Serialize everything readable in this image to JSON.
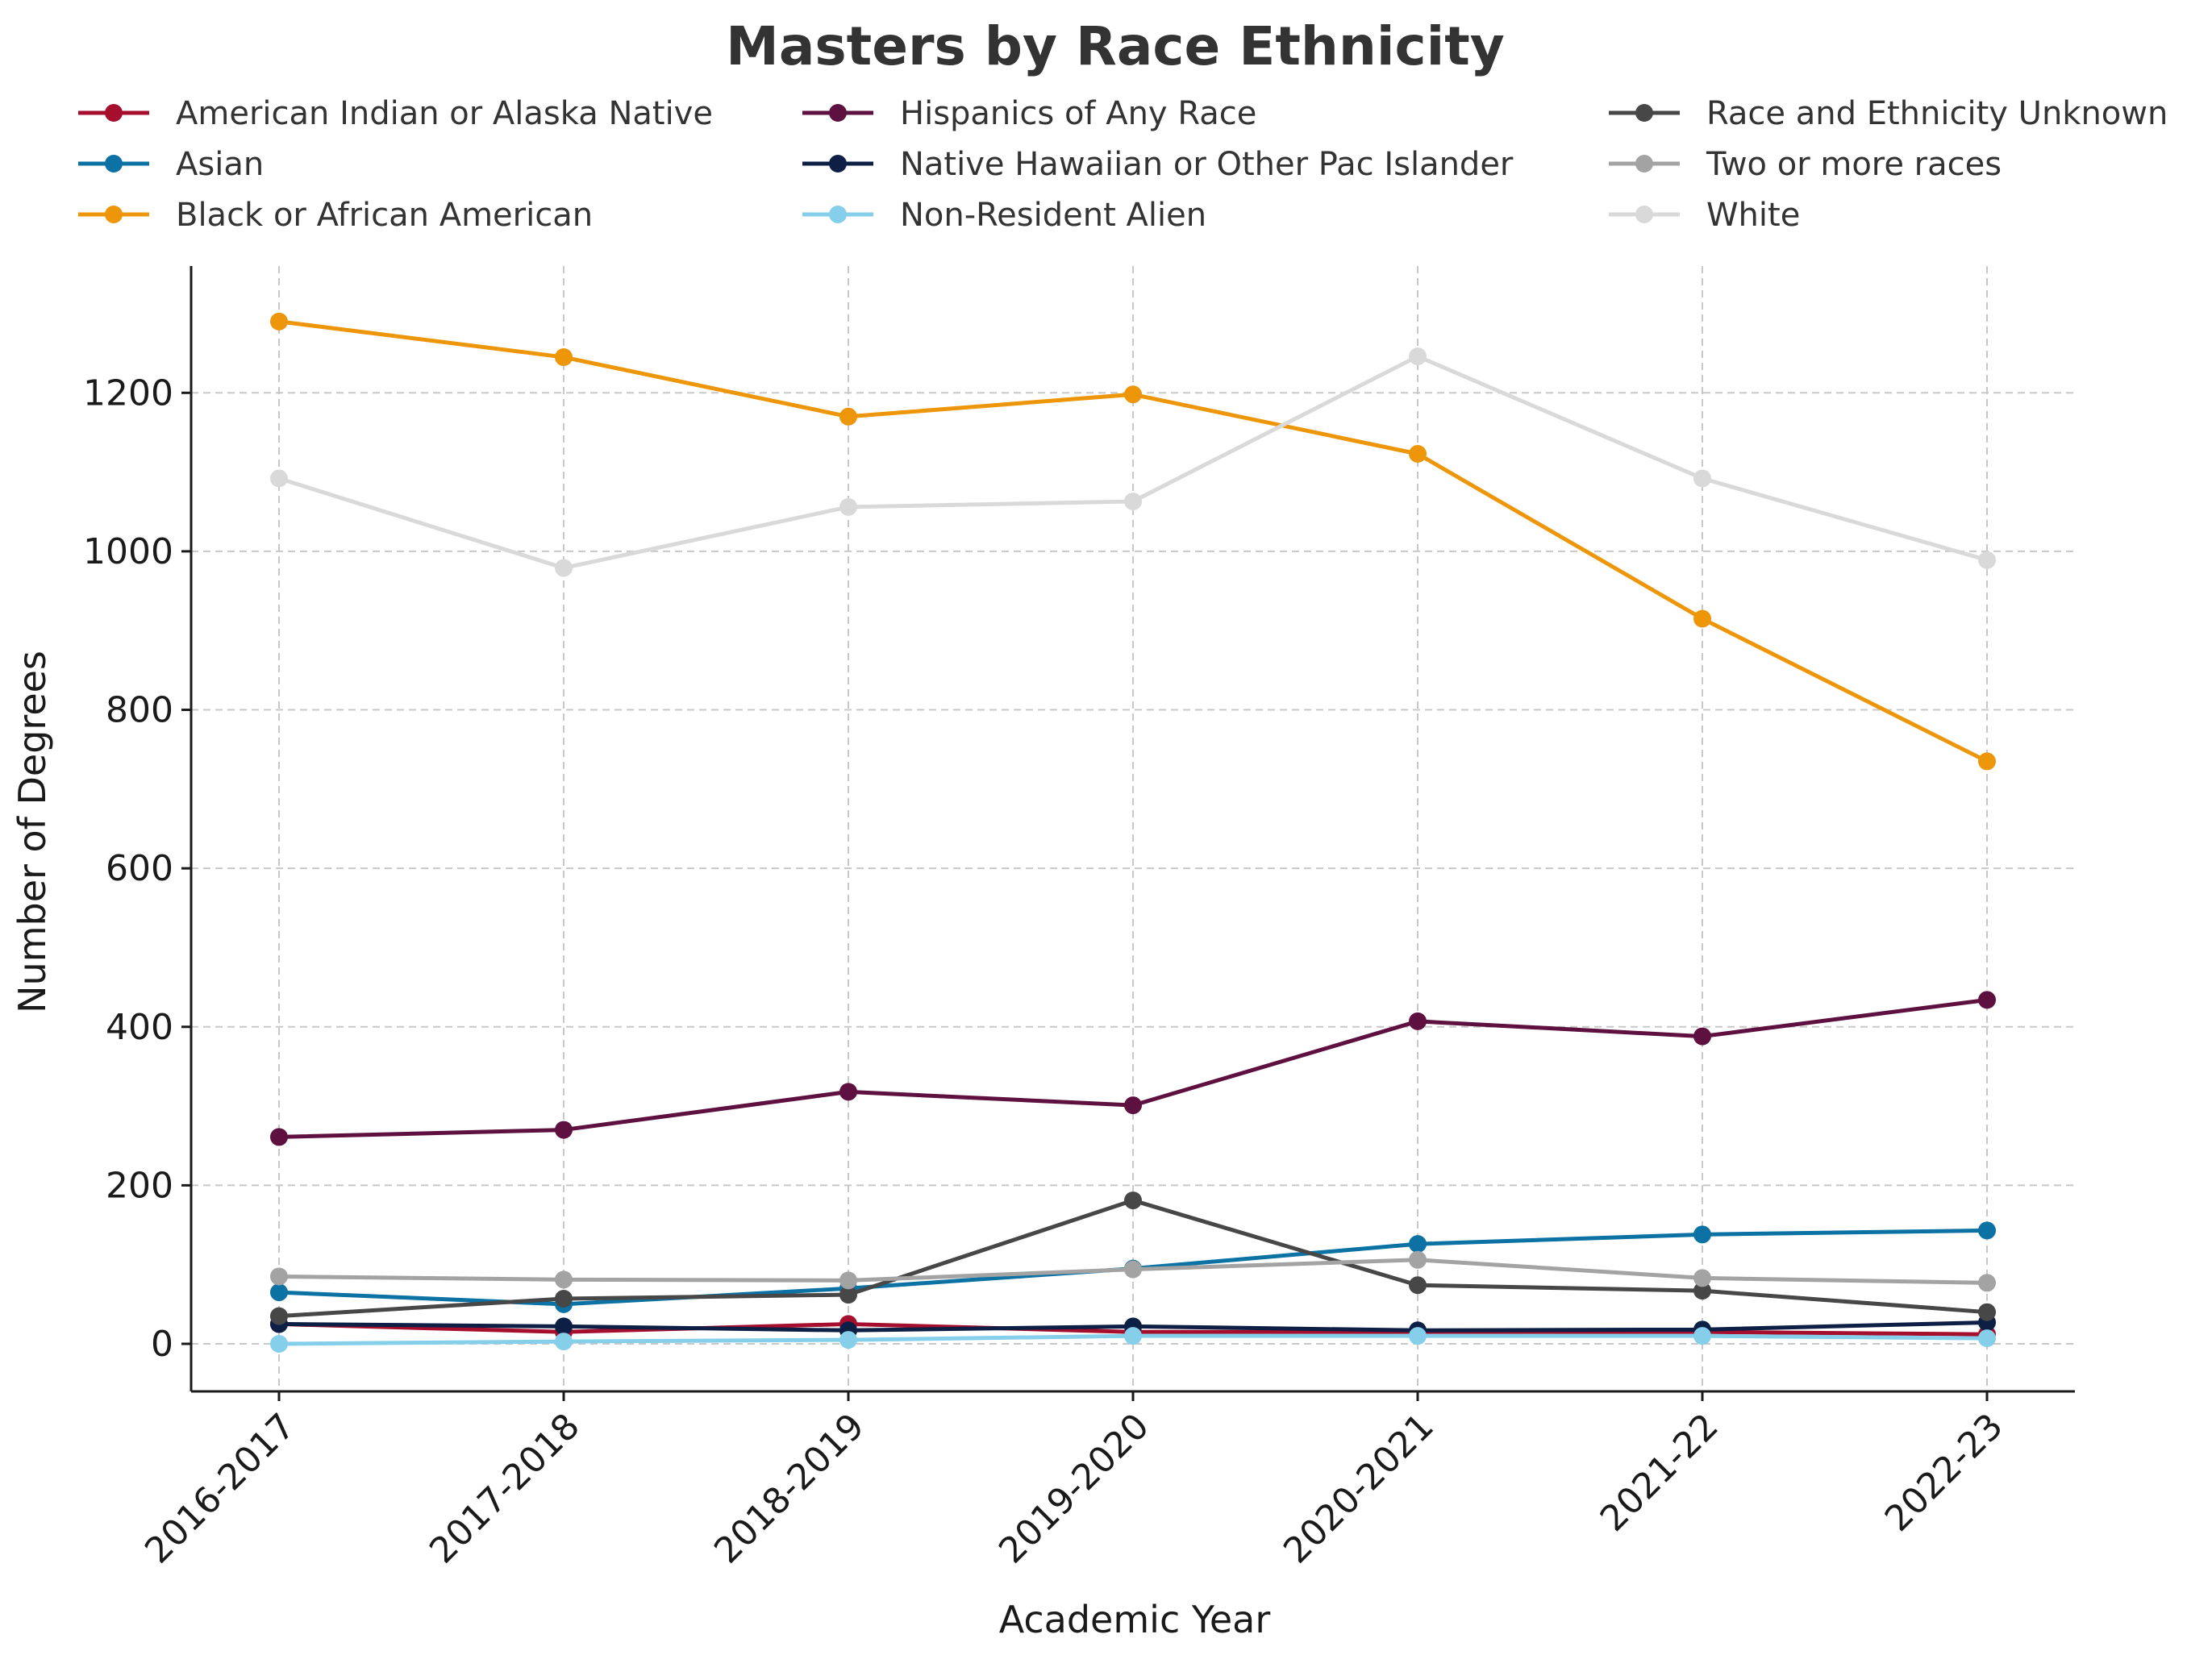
{
  "chart_data": {
    "type": "line",
    "title": "Masters by Race Ethnicity",
    "xlabel": "Academic Year",
    "ylabel": "Number of Degrees",
    "categories": [
      "2016-2017",
      "2017-2018",
      "2018-2019",
      "2019-2020",
      "2020-2021",
      "2021-22",
      "2022-23"
    ],
    "ylim": [
      -60,
      1360
    ],
    "yticks": [
      0,
      200,
      400,
      600,
      800,
      1000,
      1200
    ],
    "grid": true,
    "legend_position": "top",
    "series": [
      {
        "name": "American Indian or Alaska Native",
        "color": "#a50e2d",
        "values": [
          25,
          15,
          25,
          15,
          15,
          15,
          12
        ]
      },
      {
        "name": "Asian",
        "color": "#0b72a3",
        "values": [
          65,
          50,
          70,
          95,
          126,
          138,
          143
        ]
      },
      {
        "name": "Black or African American",
        "color": "#ee9609",
        "values": [
          1290,
          1245,
          1170,
          1198,
          1123,
          915,
          735
        ]
      },
      {
        "name": "Hispanics of Any Race",
        "color": "#5e1040",
        "values": [
          261,
          270,
          318,
          301,
          407,
          388,
          434
        ]
      },
      {
        "name": "Native Hawaiian or Other Pac Islander",
        "color": "#0e1f45",
        "values": [
          25,
          22,
          17,
          22,
          17,
          18,
          27
        ]
      },
      {
        "name": "Non-Resident Alien",
        "color": "#86cfea",
        "values": [
          0,
          3,
          5,
          10,
          10,
          10,
          7
        ]
      },
      {
        "name": "Race and Ethnicity Unknown",
        "color": "#474747",
        "values": [
          35,
          57,
          62,
          181,
          74,
          67,
          40
        ]
      },
      {
        "name": "Two or more races",
        "color": "#a3a3a3",
        "values": [
          85,
          81,
          80,
          94,
          106,
          83,
          77
        ]
      },
      {
        "name": "White",
        "color": "#d9d9d9",
        "values": [
          1092,
          979,
          1056,
          1063,
          1246,
          1092,
          989
        ]
      }
    ]
  }
}
